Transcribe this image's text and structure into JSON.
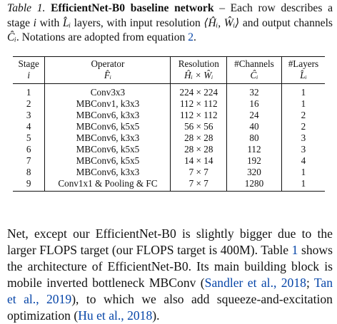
{
  "caption": {
    "label": "Table 1.",
    "title": "EfficientNet-B0 baseline network",
    "text_part1": " – Each row describes a stage ",
    "stage_var": "i",
    "text_part2": " with ",
    "layers_var": "L̂ᵢ",
    "text_part3": " layers, with input resolution ",
    "resolution_var": "⟨Ĥᵢ, Ŵᵢ⟩",
    "text_part4": " and output channels ",
    "channels_var": "Ĉᵢ",
    "text_part5": ". Notations are adopted from equation ",
    "eq_ref": "2",
    "text_end": "."
  },
  "table": {
    "headers": [
      {
        "title": "Stage",
        "sub": "i"
      },
      {
        "title": "Operator",
        "sub": "F̂ᵢ"
      },
      {
        "title": "Resolution",
        "sub": "Ĥᵢ × Ŵᵢ"
      },
      {
        "title": "#Channels",
        "sub": "Ĉᵢ"
      },
      {
        "title": "#Layers",
        "sub": "L̂ᵢ"
      }
    ],
    "rows": [
      {
        "stage": "1",
        "operator": "Conv3x3",
        "resolution": "224 × 224",
        "channels": "32",
        "layers": "1"
      },
      {
        "stage": "2",
        "operator": "MBConv1, k3x3",
        "resolution": "112 × 112",
        "channels": "16",
        "layers": "1"
      },
      {
        "stage": "3",
        "operator": "MBConv6, k3x3",
        "resolution": "112 × 112",
        "channels": "24",
        "layers": "2"
      },
      {
        "stage": "4",
        "operator": "MBConv6, k5x5",
        "resolution": "56 × 56",
        "channels": "40",
        "layers": "2"
      },
      {
        "stage": "5",
        "operator": "MBConv6, k3x3",
        "resolution": "28 × 28",
        "channels": "80",
        "layers": "3"
      },
      {
        "stage": "6",
        "operator": "MBConv6, k5x5",
        "resolution": "28 × 28",
        "channels": "112",
        "layers": "3"
      },
      {
        "stage": "7",
        "operator": "MBConv6, k5x5",
        "resolution": "14 × 14",
        "channels": "192",
        "layers": "4"
      },
      {
        "stage": "8",
        "operator": "MBConv6, k3x3",
        "resolution": "7 × 7",
        "channels": "320",
        "layers": "1"
      },
      {
        "stage": "9",
        "operator": "Conv1x1 & Pooling & FC",
        "resolution": "7 × 7",
        "channels": "1280",
        "layers": "1"
      }
    ]
  },
  "body": {
    "part1": "Net, except our EfficientNet-B0 is slightly bigger due to the larger FLOPS target (our FLOPS target is 400M). Table ",
    "ref_table": "1",
    "part2": " shows the architecture of EfficientNet-B0. Its main building block is mobile inverted bottleneck MBConv (",
    "cite_sandler": "Sandler et al., 2018",
    "sep1": "; ",
    "cite_tan": "Tan et al., 2019",
    "part3": "), to which we also add squeeze-and-excitation optimization (",
    "cite_hu": "Hu et al., 2018",
    "part4": ")."
  },
  "colors": {
    "link": "#0645a8",
    "text": "#111111"
  }
}
